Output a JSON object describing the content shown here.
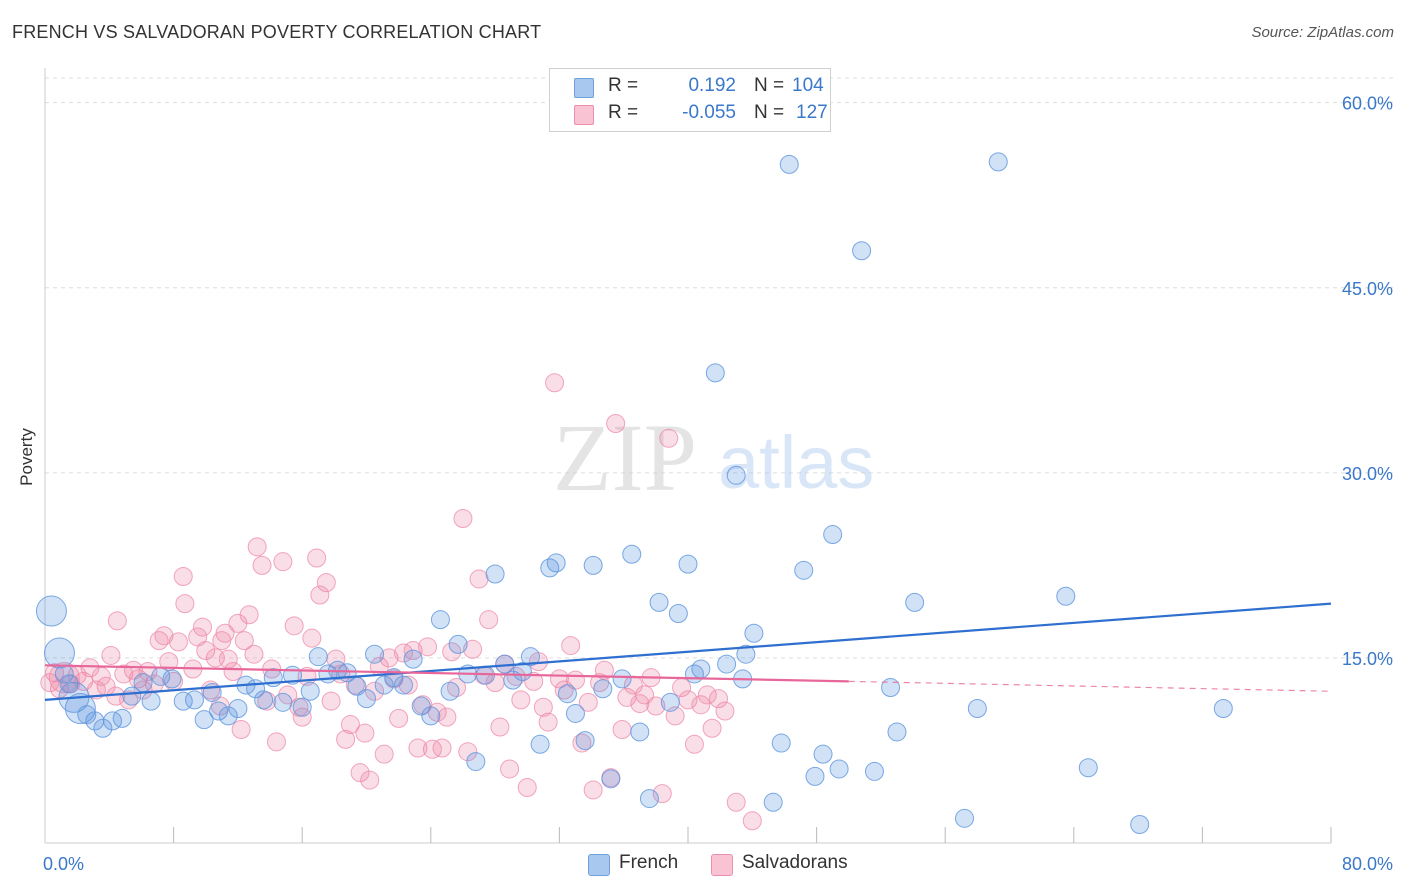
{
  "title": "FRENCH VS SALVADORAN POVERTY CORRELATION CHART",
  "source": "Source: ZipAtlas.com",
  "watermark": {
    "zip": "ZIP",
    "atlas": "atlas"
  },
  "legend_top": [
    {
      "r_label": "R =",
      "r_value": "0.192",
      "n_label": "N =",
      "n_value": "104",
      "color": "#a9c8f0",
      "border": "#6fa0dc"
    },
    {
      "r_label": "R =",
      "r_value": "-0.055",
      "n_label": "N =",
      "n_value": "127",
      "color": "#f9c3d4",
      "border": "#ea8fad"
    }
  ],
  "legend_bottom": [
    {
      "label": "French",
      "color": "#a9c8f0",
      "border": "#6fa0dc"
    },
    {
      "label": "Salvadorans",
      "color": "#f9c3d4",
      "border": "#ea8fad"
    }
  ],
  "colors": {
    "french": "#5b95dd",
    "french_line": "#2f6fcf",
    "salvadoran": "#ee88a8",
    "salvadoran_line": "#e8679a",
    "axis_label": "#3a78c9",
    "grid": "#dddddd"
  },
  "chart_data": {
    "type": "scatter",
    "title": "FRENCH VS SALVADORAN POVERTY CORRELATION CHART",
    "xlabel": "",
    "ylabel": "Poverty",
    "xlim": [
      0,
      80
    ],
    "ylim": [
      0,
      62
    ],
    "x_tick_labels": [
      "0.0%",
      "80.0%"
    ],
    "y_ticks": [
      15,
      30,
      45,
      60
    ],
    "y_tick_labels": [
      "15.0%",
      "30.0%",
      "45.0%",
      "60.0%"
    ],
    "grid": "horizontal dashed",
    "legend": "top-center",
    "series": [
      {
        "name": "French",
        "r": 0.192,
        "n": 104,
        "trend": {
          "x": [
            0,
            80
          ],
          "y": [
            11.6,
            19.4
          ]
        },
        "points": [
          [
            0.4,
            18.8,
            2
          ],
          [
            0.9,
            15.4,
            2
          ],
          [
            1.2,
            13.7,
            1
          ],
          [
            1.5,
            12.9,
            1
          ],
          [
            1.8,
            11.8,
            2
          ],
          [
            2.2,
            10.9,
            2
          ],
          [
            2.6,
            10.4,
            1
          ],
          [
            3.1,
            9.9,
            1
          ],
          [
            3.6,
            9.3,
            1
          ],
          [
            4.2,
            9.9,
            1
          ],
          [
            4.8,
            10.1,
            1
          ],
          [
            5.4,
            11.9,
            1
          ],
          [
            6.1,
            13.0,
            1
          ],
          [
            6.6,
            11.5,
            1
          ],
          [
            7.2,
            13.5,
            1
          ],
          [
            7.9,
            13.3,
            1
          ],
          [
            8.6,
            11.5,
            1
          ],
          [
            9.3,
            11.6,
            1
          ],
          [
            9.9,
            10.0,
            1
          ],
          [
            10.4,
            12.2,
            1
          ],
          [
            10.8,
            10.7,
            1
          ],
          [
            11.4,
            10.3,
            1
          ],
          [
            12.0,
            10.9,
            1
          ],
          [
            12.5,
            12.8,
            1
          ],
          [
            13.1,
            12.5,
            1
          ],
          [
            13.6,
            11.6,
            1
          ],
          [
            14.2,
            13.4,
            1
          ],
          [
            14.8,
            11.4,
            1
          ],
          [
            15.4,
            13.6,
            1
          ],
          [
            16.0,
            11.0,
            1
          ],
          [
            16.5,
            12.3,
            1
          ],
          [
            17.0,
            15.1,
            1
          ],
          [
            17.6,
            13.7,
            1
          ],
          [
            18.2,
            14.0,
            1
          ],
          [
            18.8,
            13.8,
            1
          ],
          [
            19.4,
            12.7,
            1
          ],
          [
            20.0,
            11.7,
            1
          ],
          [
            20.5,
            15.3,
            1
          ],
          [
            21.1,
            12.8,
            1
          ],
          [
            21.7,
            13.4,
            1
          ],
          [
            22.3,
            12.8,
            1
          ],
          [
            22.9,
            14.9,
            1
          ],
          [
            23.4,
            11.1,
            1
          ],
          [
            24.0,
            10.3,
            1
          ],
          [
            24.6,
            18.1,
            1
          ],
          [
            25.2,
            12.3,
            1
          ],
          [
            25.7,
            16.1,
            1
          ],
          [
            26.3,
            13.7,
            1
          ],
          [
            26.8,
            6.6,
            1
          ],
          [
            27.4,
            13.6,
            1
          ],
          [
            28.0,
            21.8,
            1
          ],
          [
            28.6,
            14.5,
            1
          ],
          [
            29.1,
            13.2,
            1
          ],
          [
            29.7,
            13.9,
            1
          ],
          [
            30.2,
            15.1,
            1
          ],
          [
            30.8,
            8.0,
            1
          ],
          [
            31.4,
            22.3,
            1
          ],
          [
            31.8,
            22.7,
            1
          ],
          [
            32.5,
            12.1,
            1
          ],
          [
            33.0,
            10.5,
            1
          ],
          [
            33.6,
            8.3,
            1
          ],
          [
            34.1,
            22.5,
            1
          ],
          [
            34.7,
            12.5,
            1
          ],
          [
            35.2,
            5.2,
            1
          ],
          [
            35.9,
            13.3,
            1
          ],
          [
            36.5,
            23.4,
            1
          ],
          [
            37.0,
            9.0,
            1
          ],
          [
            37.6,
            3.6,
            1
          ],
          [
            38.2,
            19.5,
            1
          ],
          [
            38.9,
            11.4,
            1
          ],
          [
            39.4,
            18.6,
            1
          ],
          [
            40.0,
            22.6,
            1
          ],
          [
            40.4,
            13.7,
            1
          ],
          [
            40.8,
            14.1,
            1
          ],
          [
            41.7,
            38.1,
            1
          ],
          [
            42.4,
            14.5,
            1
          ],
          [
            43.0,
            29.8,
            1
          ],
          [
            43.4,
            13.3,
            1
          ],
          [
            43.6,
            15.3,
            1
          ],
          [
            44.1,
            17.0,
            1
          ],
          [
            45.3,
            3.3,
            1
          ],
          [
            45.8,
            8.1,
            1
          ],
          [
            46.3,
            55.0,
            1
          ],
          [
            47.2,
            22.1,
            1
          ],
          [
            47.9,
            5.4,
            1
          ],
          [
            48.4,
            7.2,
            1
          ],
          [
            49.0,
            25.0,
            1
          ],
          [
            49.4,
            6.0,
            1
          ],
          [
            50.8,
            48.0,
            1
          ],
          [
            51.6,
            5.8,
            1
          ],
          [
            52.6,
            12.6,
            1
          ],
          [
            53.0,
            9.0,
            1
          ],
          [
            54.1,
            19.5,
            1
          ],
          [
            57.2,
            2.0,
            1
          ],
          [
            58.0,
            10.9,
            1
          ],
          [
            59.3,
            55.2,
            1
          ],
          [
            63.5,
            20.0,
            1
          ],
          [
            64.9,
            6.1,
            1
          ],
          [
            68.1,
            1.5,
            1
          ],
          [
            73.3,
            10.9,
            1
          ]
        ]
      },
      {
        "name": "Salvadorans",
        "r": -0.055,
        "n": 127,
        "trend": {
          "x": [
            0,
            50
          ],
          "y": [
            14.4,
            13.1
          ]
        },
        "trend_extension": {
          "x": [
            50,
            80
          ],
          "y": [
            13.1,
            12.3
          ]
        },
        "points": [
          [
            0.3,
            13.0,
            1
          ],
          [
            0.6,
            13.8,
            1
          ],
          [
            0.9,
            12.5,
            1
          ],
          [
            1.2,
            13.4,
            2
          ],
          [
            1.6,
            12.9,
            1
          ],
          [
            2.0,
            13.6,
            1
          ],
          [
            2.4,
            13.1,
            1
          ],
          [
            2.8,
            14.2,
            1
          ],
          [
            3.2,
            12.4,
            1
          ],
          [
            3.5,
            13.5,
            1
          ],
          [
            3.8,
            12.7,
            1
          ],
          [
            4.1,
            15.2,
            1
          ],
          [
            4.4,
            11.9,
            1
          ],
          [
            4.5,
            18.0,
            1
          ],
          [
            4.9,
            13.7,
            1
          ],
          [
            5.2,
            11.6,
            1
          ],
          [
            5.5,
            14.0,
            1
          ],
          [
            5.8,
            13.3,
            1
          ],
          [
            6.1,
            12.4,
            1
          ],
          [
            6.4,
            13.9,
            1
          ],
          [
            6.8,
            12.9,
            1
          ],
          [
            7.1,
            16.4,
            1
          ],
          [
            7.4,
            16.8,
            1
          ],
          [
            7.7,
            14.7,
            1
          ],
          [
            8.0,
            13.1,
            1
          ],
          [
            8.3,
            16.3,
            1
          ],
          [
            8.6,
            21.6,
            1
          ],
          [
            8.7,
            19.4,
            1
          ],
          [
            9.2,
            14.1,
            1
          ],
          [
            9.5,
            16.7,
            1
          ],
          [
            9.8,
            17.5,
            1
          ],
          [
            10.0,
            15.6,
            1
          ],
          [
            10.3,
            12.4,
            1
          ],
          [
            10.6,
            15.0,
            1
          ],
          [
            10.9,
            11.1,
            1
          ],
          [
            11.0,
            16.4,
            1
          ],
          [
            11.2,
            17.0,
            1
          ],
          [
            11.4,
            14.9,
            1
          ],
          [
            11.7,
            13.9,
            1
          ],
          [
            12.0,
            17.8,
            1
          ],
          [
            12.2,
            9.2,
            1
          ],
          [
            12.4,
            16.4,
            1
          ],
          [
            12.7,
            18.5,
            1
          ],
          [
            13.0,
            15.3,
            1
          ],
          [
            13.2,
            24.0,
            1
          ],
          [
            13.5,
            22.5,
            1
          ],
          [
            13.8,
            11.5,
            1
          ],
          [
            14.1,
            14.1,
            1
          ],
          [
            14.4,
            8.2,
            1
          ],
          [
            14.8,
            22.8,
            1
          ],
          [
            15.1,
            12.0,
            1
          ],
          [
            15.5,
            17.6,
            1
          ],
          [
            15.8,
            11.0,
            1
          ],
          [
            16.0,
            10.2,
            1
          ],
          [
            16.3,
            13.5,
            1
          ],
          [
            16.6,
            16.6,
            1
          ],
          [
            16.9,
            23.1,
            1
          ],
          [
            17.1,
            20.1,
            1
          ],
          [
            17.5,
            21.1,
            1
          ],
          [
            17.8,
            11.5,
            1
          ],
          [
            18.1,
            14.9,
            1
          ],
          [
            18.4,
            13.7,
            1
          ],
          [
            18.7,
            8.4,
            1
          ],
          [
            19.0,
            9.6,
            1
          ],
          [
            19.3,
            12.8,
            1
          ],
          [
            19.6,
            5.7,
            1
          ],
          [
            19.9,
            8.9,
            1
          ],
          [
            20.2,
            5.1,
            1
          ],
          [
            20.5,
            12.3,
            1
          ],
          [
            20.8,
            14.3,
            1
          ],
          [
            21.1,
            7.2,
            1
          ],
          [
            21.4,
            15.0,
            1
          ],
          [
            21.7,
            13.3,
            1
          ],
          [
            22.0,
            10.1,
            1
          ],
          [
            22.3,
            15.4,
            1
          ],
          [
            22.6,
            12.8,
            1
          ],
          [
            22.9,
            15.6,
            1
          ],
          [
            23.2,
            7.7,
            1
          ],
          [
            23.5,
            11.2,
            1
          ],
          [
            23.8,
            15.9,
            1
          ],
          [
            24.1,
            7.6,
            1
          ],
          [
            24.4,
            10.6,
            1
          ],
          [
            24.7,
            7.7,
            1
          ],
          [
            25.0,
            10.2,
            1
          ],
          [
            25.3,
            15.5,
            1
          ],
          [
            25.6,
            12.6,
            1
          ],
          [
            26.0,
            26.3,
            1
          ],
          [
            26.3,
            7.4,
            1
          ],
          [
            26.6,
            15.7,
            1
          ],
          [
            27.0,
            21.4,
            1
          ],
          [
            27.3,
            13.6,
            1
          ],
          [
            27.6,
            18.1,
            1
          ],
          [
            28.0,
            13.0,
            1
          ],
          [
            28.3,
            9.4,
            1
          ],
          [
            28.6,
            14.5,
            1
          ],
          [
            28.9,
            6.0,
            1
          ],
          [
            29.3,
            13.5,
            1
          ],
          [
            29.6,
            11.6,
            1
          ],
          [
            30.0,
            4.5,
            1
          ],
          [
            30.4,
            13.1,
            1
          ],
          [
            30.7,
            14.7,
            1
          ],
          [
            31.0,
            11.0,
            1
          ],
          [
            31.3,
            9.8,
            1
          ],
          [
            31.7,
            37.3,
            1
          ],
          [
            32.0,
            13.3,
            1
          ],
          [
            32.3,
            12.4,
            1
          ],
          [
            32.7,
            16.0,
            1
          ],
          [
            33.0,
            13.2,
            1
          ],
          [
            33.4,
            8.1,
            1
          ],
          [
            33.8,
            11.4,
            1
          ],
          [
            34.1,
            4.3,
            1
          ],
          [
            34.5,
            13.0,
            1
          ],
          [
            34.8,
            14.0,
            1
          ],
          [
            35.2,
            5.3,
            1
          ],
          [
            35.5,
            34.0,
            1
          ],
          [
            35.9,
            9.2,
            1
          ],
          [
            36.2,
            11.8,
            1
          ],
          [
            36.6,
            12.8,
            1
          ],
          [
            37.0,
            11.3,
            1
          ],
          [
            37.3,
            12.0,
            1
          ],
          [
            37.7,
            13.4,
            1
          ],
          [
            38.0,
            11.1,
            1
          ],
          [
            38.4,
            4.0,
            1
          ],
          [
            38.8,
            32.8,
            1
          ],
          [
            39.2,
            10.3,
            1
          ],
          [
            39.6,
            12.6,
            1
          ],
          [
            40.0,
            11.6,
            1
          ],
          [
            40.4,
            8.0,
            1
          ],
          [
            40.8,
            11.2,
            1
          ],
          [
            41.2,
            12.0,
            1
          ],
          [
            41.5,
            9.3,
            1
          ],
          [
            41.9,
            11.7,
            1
          ],
          [
            42.3,
            10.7,
            1
          ],
          [
            43.0,
            3.3,
            1
          ],
          [
            44.0,
            1.8,
            1
          ]
        ]
      }
    ]
  }
}
